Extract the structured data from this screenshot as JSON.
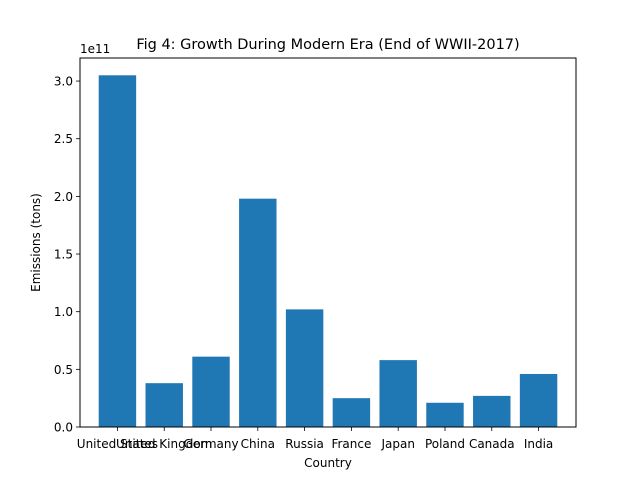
{
  "chart_data": {
    "type": "bar",
    "title": "Fig 4: Growth During Modern Era (End of WWII-2017)",
    "xlabel": "Country",
    "ylabel": "Emissions (tons)",
    "offset_label": "1e11",
    "categories": [
      "United States",
      "United Kingdom",
      "Germany",
      "China",
      "Russia",
      "France",
      "Japan",
      "Poland",
      "Canada",
      "India"
    ],
    "values": [
      305000000000.0,
      38000000000.0,
      61000000000.0,
      198000000000.0,
      102000000000.0,
      25000000000.0,
      58000000000.0,
      21000000000.0,
      27000000000.0,
      46000000000.0
    ],
    "ylim": [
      0,
      320000000000.0
    ],
    "yticks": [
      0,
      50000000000.0,
      100000000000.0,
      150000000000.0,
      200000000000.0,
      250000000000.0,
      300000000000.0
    ],
    "ytick_labels": [
      "0.0",
      "0.5",
      "1.0",
      "1.5",
      "2.0",
      "2.5",
      "3.0"
    ],
    "bar_color": "#1f77b4",
    "grid": false,
    "legend": "none"
  }
}
